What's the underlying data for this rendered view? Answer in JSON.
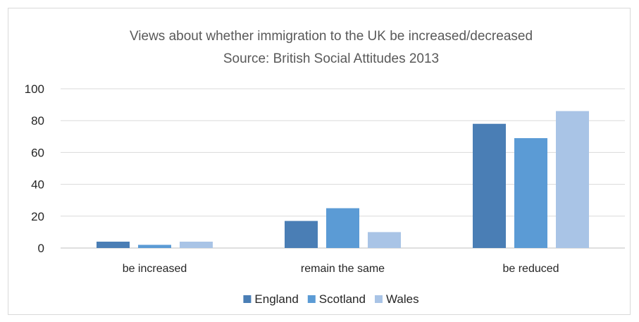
{
  "chart_data": {
    "type": "bar",
    "title": "Views about whether immigration to the UK be increased/decreased",
    "subtitle": "Source: British Social Attitudes 2013",
    "xlabel": "",
    "ylabel": "",
    "categories": [
      "be increased",
      "remain the same",
      "be reduced"
    ],
    "series": [
      {
        "name": "England",
        "color": "#4a7eb5",
        "values": [
          4,
          17,
          78
        ]
      },
      {
        "name": "Scotland",
        "color": "#5b9bd5",
        "values": [
          2,
          25,
          69
        ]
      },
      {
        "name": "Wales",
        "color": "#a9c4e6",
        "values": [
          4,
          10,
          86
        ]
      }
    ],
    "ylim": [
      0,
      100
    ],
    "yticks": [
      0,
      20,
      40,
      60,
      80,
      100
    ],
    "grid": true,
    "legend": "bottom"
  }
}
